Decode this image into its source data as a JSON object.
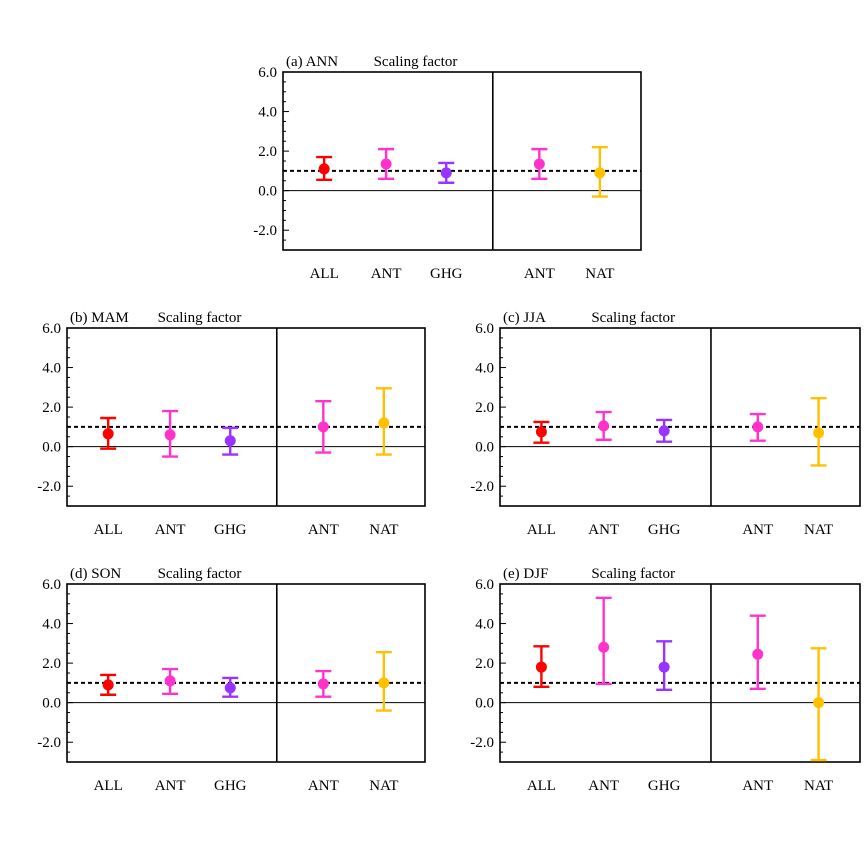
{
  "chart_data": [
    {
      "type": "errorbar",
      "panel_label": "(a) ANN",
      "title": "Scaling factor",
      "ylim": [
        -3.0,
        6.0
      ],
      "yticks": [
        "6.0",
        "4.0",
        "2.0",
        "0.0",
        "-2.0"
      ],
      "reference_line": 1.0,
      "groups": [
        {
          "points": [
            {
              "label": "ALL",
              "best": 1.1,
              "low": 0.55,
              "high": 1.7,
              "color": "#ff0000"
            },
            {
              "label": "ANT",
              "best": 1.35,
              "low": 0.6,
              "high": 2.1,
              "color": "#ff33cc"
            },
            {
              "label": "GHG",
              "best": 0.9,
              "low": 0.4,
              "high": 1.4,
              "color": "#9933ff"
            }
          ]
        },
        {
          "points": [
            {
              "label": "ANT",
              "best": 1.35,
              "low": 0.6,
              "high": 2.1,
              "color": "#ff33cc"
            },
            {
              "label": "NAT",
              "best": 0.9,
              "low": -0.3,
              "high": 2.2,
              "color": "#ffc000"
            }
          ]
        }
      ]
    },
    {
      "type": "errorbar",
      "panel_label": "(b) MAM",
      "title": "Scaling factor",
      "ylim": [
        -3.0,
        6.0
      ],
      "yticks": [
        "6.0",
        "4.0",
        "2.0",
        "0.0",
        "-2.0"
      ],
      "reference_line": 1.0,
      "groups": [
        {
          "points": [
            {
              "label": "ALL",
              "best": 0.65,
              "low": -0.1,
              "high": 1.45,
              "color": "#ff0000"
            },
            {
              "label": "ANT",
              "best": 0.6,
              "low": -0.5,
              "high": 1.8,
              "color": "#ff33cc"
            },
            {
              "label": "GHG",
              "best": 0.3,
              "low": -0.4,
              "high": 0.95,
              "color": "#9933ff"
            }
          ]
        },
        {
          "points": [
            {
              "label": "ANT",
              "best": 1.0,
              "low": -0.3,
              "high": 2.3,
              "color": "#ff33cc"
            },
            {
              "label": "NAT",
              "best": 1.2,
              "low": -0.4,
              "high": 2.95,
              "color": "#ffc000"
            }
          ]
        }
      ]
    },
    {
      "type": "errorbar",
      "panel_label": "(c) JJA",
      "title": "Scaling factor",
      "ylim": [
        -3.0,
        6.0
      ],
      "yticks": [
        "6.0",
        "4.0",
        "2.0",
        "0.0",
        "-2.0"
      ],
      "reference_line": 1.0,
      "groups": [
        {
          "points": [
            {
              "label": "ALL",
              "best": 0.75,
              "low": 0.2,
              "high": 1.25,
              "color": "#ff0000"
            },
            {
              "label": "ANT",
              "best": 1.05,
              "low": 0.35,
              "high": 1.75,
              "color": "#ff33cc"
            },
            {
              "label": "GHG",
              "best": 0.8,
              "low": 0.25,
              "high": 1.35,
              "color": "#9933ff"
            }
          ]
        },
        {
          "points": [
            {
              "label": "ANT",
              "best": 1.0,
              "low": 0.3,
              "high": 1.65,
              "color": "#ff33cc"
            },
            {
              "label": "NAT",
              "best": 0.7,
              "low": -0.95,
              "high": 2.45,
              "color": "#ffc000"
            }
          ]
        }
      ]
    },
    {
      "type": "errorbar",
      "panel_label": "(d) SON",
      "title": "Scaling factor",
      "ylim": [
        -3.0,
        6.0
      ],
      "yticks": [
        "6.0",
        "4.0",
        "2.0",
        "0.0",
        "-2.0"
      ],
      "reference_line": 1.0,
      "groups": [
        {
          "points": [
            {
              "label": "ALL",
              "best": 0.9,
              "low": 0.4,
              "high": 1.4,
              "color": "#ff0000"
            },
            {
              "label": "ANT",
              "best": 1.1,
              "low": 0.45,
              "high": 1.7,
              "color": "#ff33cc"
            },
            {
              "label": "GHG",
              "best": 0.75,
              "low": 0.3,
              "high": 1.25,
              "color": "#9933ff"
            }
          ]
        },
        {
          "points": [
            {
              "label": "ANT",
              "best": 0.95,
              "low": 0.3,
              "high": 1.6,
              "color": "#ff33cc"
            },
            {
              "label": "NAT",
              "best": 1.0,
              "low": -0.4,
              "high": 2.55,
              "color": "#ffc000"
            }
          ]
        }
      ]
    },
    {
      "type": "errorbar",
      "panel_label": "(e) DJF",
      "title": "Scaling factor",
      "ylim": [
        -3.0,
        6.0
      ],
      "yticks": [
        "6.0",
        "4.0",
        "2.0",
        "0.0",
        "-2.0"
      ],
      "reference_line": 1.0,
      "groups": [
        {
          "points": [
            {
              "label": "ALL",
              "best": 1.8,
              "low": 0.8,
              "high": 2.85,
              "color": "#ff0000"
            },
            {
              "label": "ANT",
              "best": 2.8,
              "low": 0.95,
              "high": 5.3,
              "color": "#ff33cc"
            },
            {
              "label": "GHG",
              "best": 1.8,
              "low": 0.65,
              "high": 3.1,
              "color": "#9933ff"
            }
          ]
        },
        {
          "points": [
            {
              "label": "ANT",
              "best": 2.45,
              "low": 0.7,
              "high": 4.4,
              "color": "#ff33cc"
            },
            {
              "label": "NAT",
              "best": 0.0,
              "low": -2.9,
              "high": 2.75,
              "color": "#ffc000"
            }
          ]
        }
      ]
    }
  ]
}
